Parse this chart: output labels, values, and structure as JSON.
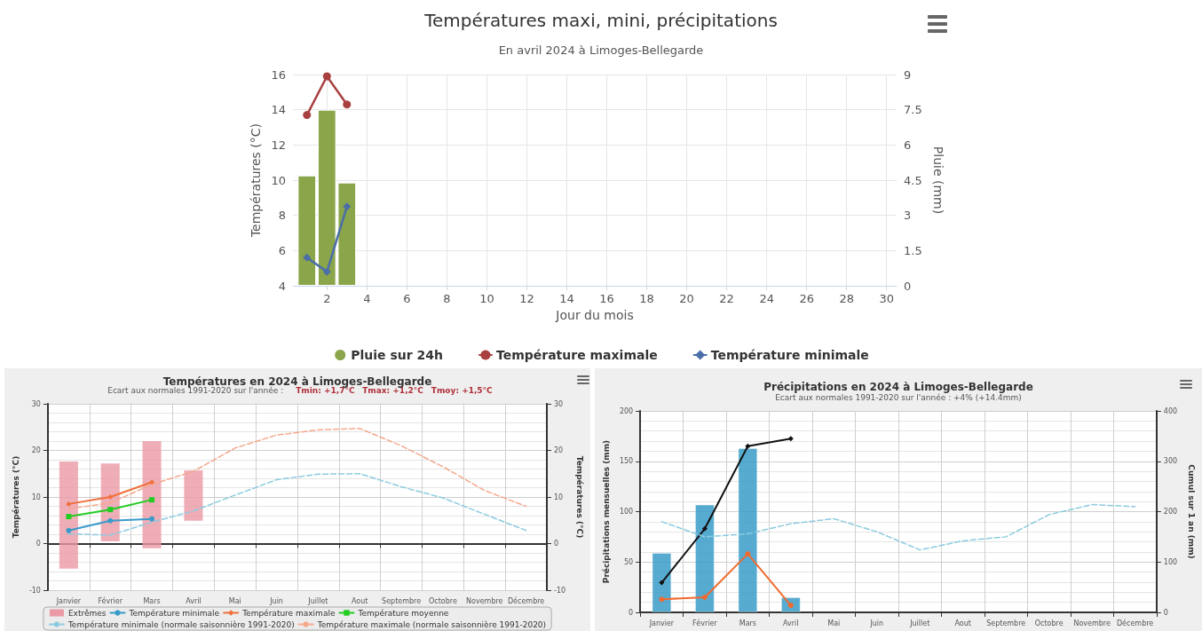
{
  "chart_data": [
    {
      "type": "bar",
      "title": "Températures maxi, mini, précipitations",
      "subtitle": "En avril 2024 à Limoges-Bellegarde",
      "xlabel": "Jour du mois",
      "ylabel": "Températures (°C)",
      "y2label": "Pluie (mm)",
      "x": [
        1,
        2,
        3
      ],
      "xlim": [
        0.3,
        30.5
      ],
      "xticks": [
        2,
        4,
        6,
        8,
        10,
        12,
        14,
        16,
        18,
        20,
        22,
        24,
        26,
        28,
        30
      ],
      "ylim": [
        4,
        16
      ],
      "yticks": [
        4,
        6,
        8,
        10,
        12,
        14,
        16
      ],
      "y2lim": [
        0,
        9
      ],
      "y2ticks": [
        0,
        1.5,
        3,
        4.5,
        6,
        7.5,
        9
      ],
      "grid": true,
      "legend": "bottom",
      "series": [
        {
          "name": "Pluie sur 24h",
          "axis": "y2",
          "color": "#8ba54a",
          "values": [
            4.7,
            7.5,
            4.4
          ]
        },
        {
          "name": "Température maximale",
          "type": "line",
          "marker": "circle",
          "color": "#a8403f",
          "values": [
            13.7,
            15.9,
            14.3
          ]
        },
        {
          "name": "Température minimale",
          "type": "line",
          "marker": "diamond",
          "color": "#4a6ea8",
          "values": [
            5.6,
            4.8,
            8.5
          ]
        }
      ]
    },
    {
      "type": "bar",
      "title": "Températures en 2024 à Limoges-Bellegarde",
      "subtitle": "Ecart aux normales 1991-2020 sur l'année :",
      "annotations": [
        "Tmin: +1,7°C",
        "Tmax: +1,2°C",
        "Tmoy: +1,5°C"
      ],
      "categories": [
        "Janvier",
        "Février",
        "Mars",
        "Avril",
        "Mai",
        "Juin",
        "Juillet",
        "Aout",
        "Septembre",
        "Octobre",
        "Novembre",
        "Décembre"
      ],
      "ylabel": "Températures (°C)",
      "y2label": "Températures (°C)",
      "ylim": [
        -10,
        30
      ],
      "yticks": [
        -10,
        0,
        10,
        20,
        30
      ],
      "y2lim": [
        -10,
        30
      ],
      "y2ticks": [
        -10,
        0,
        10,
        20,
        30
      ],
      "grid": true,
      "legend": "bottom",
      "series": [
        {
          "name": "Extrêmes",
          "color": "#eb9aa5",
          "base": [
            -5.4,
            0.5,
            -1,
            4.9,
            null,
            null,
            null,
            null,
            null,
            null,
            null,
            null
          ],
          "values": [
            23,
            16.7,
            23,
            10.8,
            null,
            null,
            null,
            null,
            null,
            null,
            null,
            null
          ]
        },
        {
          "name": "Température minimale",
          "type": "line",
          "marker": "circle",
          "color": "#3a9ac9",
          "values": [
            2.8,
            4.9,
            5.3,
            null,
            null,
            null,
            null,
            null,
            null,
            null,
            null,
            null
          ]
        },
        {
          "name": "Température maximale",
          "type": "line",
          "marker": "diamond",
          "color": "#f0703a",
          "values": [
            8.5,
            10,
            13.2,
            null,
            null,
            null,
            null,
            null,
            null,
            null,
            null,
            null
          ]
        },
        {
          "name": "Température moyenne",
          "type": "line",
          "marker": "square",
          "color": "#22cc22",
          "values": [
            5.8,
            7.3,
            9.4,
            null,
            null,
            null,
            null,
            null,
            null,
            null,
            null,
            null
          ]
        },
        {
          "name": "Température minimale (normale saisonnière 1991-2020)",
          "type": "line",
          "marker": "none",
          "line_style": "dashed",
          "color": "#8ccbe0",
          "values": [
            2.1,
            1.8,
            4.6,
            7,
            10.4,
            13.7,
            14.9,
            15,
            12.2,
            9.8,
            6.3,
            2.8
          ]
        },
        {
          "name": "Température maximale (normale saisonnière 1991-2020)",
          "type": "line",
          "marker": "none",
          "line_style": "dashed",
          "color": "#f5a88c",
          "values": [
            7.5,
            8.7,
            12.7,
            15.5,
            20.5,
            23.3,
            24.4,
            24.7,
            21,
            16.5,
            11.4,
            8
          ]
        }
      ]
    },
    {
      "type": "bar",
      "title": "Précipitations en 2024 à Limoges-Bellegarde",
      "subtitle": "Ecart aux normales 1991-2020 sur l'année : +4% (+14.4mm)",
      "categories": [
        "Janvier",
        "Février",
        "Mars",
        "Avril",
        "Mai",
        "Juin",
        "Juillet",
        "Aout",
        "Septembre",
        "Octobre",
        "Novembre",
        "Décembre"
      ],
      "ylabel": "Précipitations mensuelles (mm)",
      "y2label": "Cumul sur 1 an (mm)",
      "ylim": [
        0,
        200
      ],
      "yticks": [
        0,
        50,
        100,
        150,
        200
      ],
      "y2lim": [
        0,
        400
      ],
      "y2ticks": [
        0,
        100,
        200,
        300,
        400
      ],
      "grid": true,
      "series": [
        {
          "color": "#3a9cc8",
          "values": [
            59,
            107,
            163,
            15,
            null,
            null,
            null,
            null,
            null,
            null,
            null,
            null
          ]
        },
        {
          "type": "line",
          "axis": "y2",
          "marker": "diamond",
          "color": "#111111",
          "values": [
            59,
            166,
            330,
            345,
            null,
            null,
            null,
            null,
            null,
            null,
            null,
            null
          ]
        },
        {
          "type": "line",
          "marker": "circle",
          "color": "#f06a30",
          "values": [
            13,
            15,
            58,
            7,
            null,
            null,
            null,
            null,
            null,
            null,
            null,
            null
          ]
        },
        {
          "type": "line",
          "marker": "none",
          "line_style": "dashed",
          "color": "#8ccbe0",
          "values": [
            90,
            75,
            78,
            88,
            93,
            80,
            62,
            71,
            75,
            97,
            107,
            105
          ]
        }
      ]
    }
  ]
}
